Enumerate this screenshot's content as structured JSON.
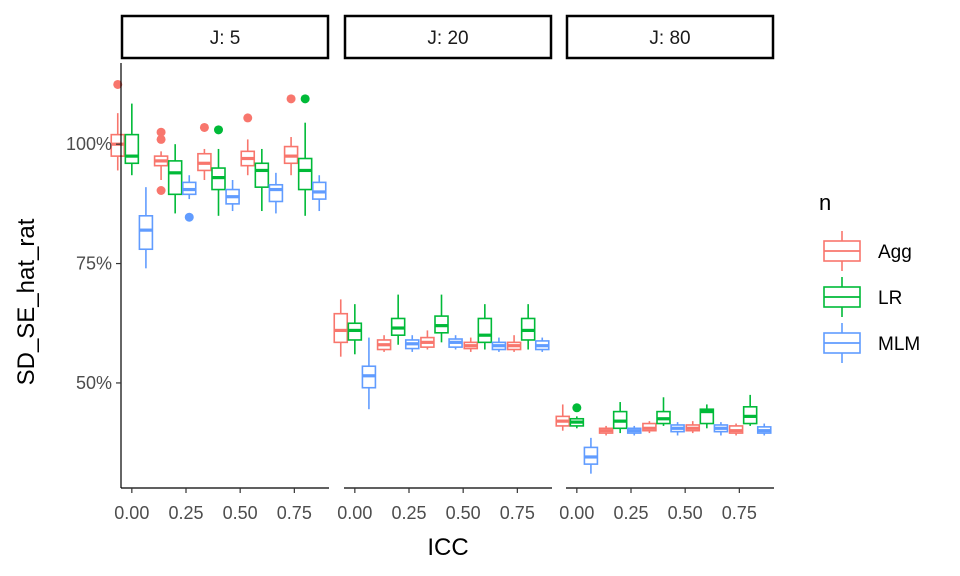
{
  "chart_data": {
    "type": "box",
    "facet_var": "J",
    "facets": [
      "J: 5",
      "J: 20",
      "J: 80"
    ],
    "xlabel": "ICC",
    "ylabel": "SD_SE_hat_rat",
    "x_ticks": [
      "0.00",
      "0.25",
      "0.50",
      "0.75"
    ],
    "x_groups": [
      0,
      0.2,
      0.4,
      0.6,
      0.8
    ],
    "y_ticks": [
      "50%",
      "75%",
      "100%"
    ],
    "y_tick_values": [
      0.5,
      0.75,
      1.0
    ],
    "ylim": [
      0.28,
      1.17
    ],
    "xlim": [
      -0.05,
      0.91
    ],
    "grid": false,
    "legend": {
      "title": "n",
      "position": "right",
      "entries": [
        {
          "name": "Agg",
          "color": "#F8766D"
        },
        {
          "name": "LR",
          "color": "#00BA38"
        },
        {
          "name": "MLM",
          "color": "#619CFF"
        }
      ]
    },
    "panels": [
      {
        "facet": "J: 5",
        "boxes": [
          {
            "x": 0.0,
            "series": "Agg",
            "lo": 0.945,
            "q1": 0.975,
            "med": 1.0,
            "q3": 1.02,
            "hi": 1.065,
            "outliers": [
              1.125
            ]
          },
          {
            "x": 0.0,
            "series": "LR",
            "lo": 0.935,
            "q1": 0.96,
            "med": 0.975,
            "q3": 1.02,
            "hi": 1.085,
            "outliers": []
          },
          {
            "x": 0.0,
            "series": "MLM",
            "lo": 0.74,
            "q1": 0.78,
            "med": 0.82,
            "q3": 0.85,
            "hi": 0.91,
            "outliers": []
          },
          {
            "x": 0.2,
            "series": "Agg",
            "lo": 0.925,
            "q1": 0.955,
            "med": 0.965,
            "q3": 0.975,
            "hi": 0.985,
            "outliers": [
              1.025,
              1.01,
              0.903
            ]
          },
          {
            "x": 0.2,
            "series": "LR",
            "lo": 0.855,
            "q1": 0.895,
            "med": 0.94,
            "q3": 0.965,
            "hi": 1.0,
            "outliers": []
          },
          {
            "x": 0.2,
            "series": "MLM",
            "lo": 0.885,
            "q1": 0.895,
            "med": 0.905,
            "q3": 0.92,
            "hi": 0.935,
            "outliers": [
              0.847
            ]
          },
          {
            "x": 0.4,
            "series": "Agg",
            "lo": 0.925,
            "q1": 0.945,
            "med": 0.96,
            "q3": 0.98,
            "hi": 0.99,
            "outliers": [
              1.035
            ]
          },
          {
            "x": 0.4,
            "series": "LR",
            "lo": 0.85,
            "q1": 0.905,
            "med": 0.93,
            "q3": 0.95,
            "hi": 0.99,
            "outliers": [
              1.03
            ]
          },
          {
            "x": 0.4,
            "series": "MLM",
            "lo": 0.86,
            "q1": 0.875,
            "med": 0.89,
            "q3": 0.905,
            "hi": 0.925,
            "outliers": []
          },
          {
            "x": 0.6,
            "series": "Agg",
            "lo": 0.935,
            "q1": 0.955,
            "med": 0.97,
            "q3": 0.985,
            "hi": 1.01,
            "outliers": [
              1.055
            ]
          },
          {
            "x": 0.6,
            "series": "LR",
            "lo": 0.86,
            "q1": 0.91,
            "med": 0.945,
            "q3": 0.96,
            "hi": 0.99,
            "outliers": []
          },
          {
            "x": 0.6,
            "series": "MLM",
            "lo": 0.855,
            "q1": 0.88,
            "med": 0.905,
            "q3": 0.915,
            "hi": 0.94,
            "outliers": []
          },
          {
            "x": 0.8,
            "series": "Agg",
            "lo": 0.935,
            "q1": 0.96,
            "med": 0.975,
            "q3": 0.995,
            "hi": 1.015,
            "outliers": [
              1.095
            ]
          },
          {
            "x": 0.8,
            "series": "LR",
            "lo": 0.85,
            "q1": 0.905,
            "med": 0.945,
            "q3": 0.97,
            "hi": 1.045,
            "outliers": [
              1.095
            ]
          },
          {
            "x": 0.8,
            "series": "MLM",
            "lo": 0.86,
            "q1": 0.885,
            "med": 0.9,
            "q3": 0.92,
            "hi": 0.935,
            "outliers": []
          }
        ]
      },
      {
        "facet": "J: 20",
        "boxes": [
          {
            "x": 0.0,
            "series": "Agg",
            "lo": 0.555,
            "q1": 0.585,
            "med": 0.61,
            "q3": 0.645,
            "hi": 0.675,
            "outliers": []
          },
          {
            "x": 0.0,
            "series": "LR",
            "lo": 0.56,
            "q1": 0.59,
            "med": 0.61,
            "q3": 0.625,
            "hi": 0.665,
            "outliers": []
          },
          {
            "x": 0.0,
            "series": "MLM",
            "lo": 0.445,
            "q1": 0.49,
            "med": 0.515,
            "q3": 0.535,
            "hi": 0.595,
            "outliers": []
          },
          {
            "x": 0.2,
            "series": "Agg",
            "lo": 0.565,
            "q1": 0.57,
            "med": 0.58,
            "q3": 0.59,
            "hi": 0.6,
            "outliers": []
          },
          {
            "x": 0.2,
            "series": "LR",
            "lo": 0.58,
            "q1": 0.6,
            "med": 0.615,
            "q3": 0.635,
            "hi": 0.685,
            "outliers": []
          },
          {
            "x": 0.2,
            "series": "MLM",
            "lo": 0.565,
            "q1": 0.572,
            "med": 0.582,
            "q3": 0.59,
            "hi": 0.6,
            "outliers": []
          },
          {
            "x": 0.4,
            "series": "Agg",
            "lo": 0.57,
            "q1": 0.575,
            "med": 0.585,
            "q3": 0.595,
            "hi": 0.61,
            "outliers": []
          },
          {
            "x": 0.4,
            "series": "LR",
            "lo": 0.585,
            "q1": 0.605,
            "med": 0.62,
            "q3": 0.64,
            "hi": 0.685,
            "outliers": []
          },
          {
            "x": 0.4,
            "series": "MLM",
            "lo": 0.57,
            "q1": 0.575,
            "med": 0.585,
            "q3": 0.592,
            "hi": 0.6,
            "outliers": []
          },
          {
            "x": 0.6,
            "series": "Agg",
            "lo": 0.565,
            "q1": 0.572,
            "med": 0.578,
            "q3": 0.585,
            "hi": 0.595,
            "outliers": []
          },
          {
            "x": 0.6,
            "series": "LR",
            "lo": 0.57,
            "q1": 0.585,
            "med": 0.6,
            "q3": 0.635,
            "hi": 0.665,
            "outliers": []
          },
          {
            "x": 0.6,
            "series": "MLM",
            "lo": 0.565,
            "q1": 0.57,
            "med": 0.578,
            "q3": 0.585,
            "hi": 0.595,
            "outliers": []
          },
          {
            "x": 0.8,
            "series": "Agg",
            "lo": 0.565,
            "q1": 0.57,
            "med": 0.578,
            "q3": 0.585,
            "hi": 0.6,
            "outliers": []
          },
          {
            "x": 0.8,
            "series": "LR",
            "lo": 0.57,
            "q1": 0.59,
            "med": 0.61,
            "q3": 0.635,
            "hi": 0.665,
            "outliers": []
          },
          {
            "x": 0.8,
            "series": "MLM",
            "lo": 0.565,
            "q1": 0.57,
            "med": 0.578,
            "q3": 0.588,
            "hi": 0.595,
            "outliers": []
          }
        ]
      },
      {
        "facet": "J: 80",
        "boxes": [
          {
            "x": 0.0,
            "series": "Agg",
            "lo": 0.4,
            "q1": 0.41,
            "med": 0.42,
            "q3": 0.43,
            "hi": 0.455,
            "outliers": []
          },
          {
            "x": 0.0,
            "series": "LR",
            "lo": 0.405,
            "q1": 0.41,
            "med": 0.418,
            "q3": 0.425,
            "hi": 0.43,
            "outliers": [
              0.448
            ]
          },
          {
            "x": 0.0,
            "series": "MLM",
            "lo": 0.31,
            "q1": 0.33,
            "med": 0.345,
            "q3": 0.365,
            "hi": 0.385,
            "outliers": []
          },
          {
            "x": 0.2,
            "series": "Agg",
            "lo": 0.39,
            "q1": 0.395,
            "med": 0.4,
            "q3": 0.405,
            "hi": 0.41,
            "outliers": []
          },
          {
            "x": 0.2,
            "series": "LR",
            "lo": 0.395,
            "q1": 0.405,
            "med": 0.42,
            "q3": 0.44,
            "hi": 0.46,
            "outliers": []
          },
          {
            "x": 0.2,
            "series": "MLM",
            "lo": 0.39,
            "q1": 0.395,
            "med": 0.4,
            "q3": 0.405,
            "hi": 0.41,
            "outliers": []
          },
          {
            "x": 0.4,
            "series": "Agg",
            "lo": 0.395,
            "q1": 0.4,
            "med": 0.405,
            "q3": 0.415,
            "hi": 0.42,
            "outliers": []
          },
          {
            "x": 0.4,
            "series": "LR",
            "lo": 0.41,
            "q1": 0.415,
            "med": 0.425,
            "q3": 0.44,
            "hi": 0.47,
            "outliers": []
          },
          {
            "x": 0.4,
            "series": "MLM",
            "lo": 0.39,
            "q1": 0.398,
            "med": 0.405,
            "q3": 0.412,
            "hi": 0.418,
            "outliers": []
          },
          {
            "x": 0.6,
            "series": "Agg",
            "lo": 0.395,
            "q1": 0.4,
            "med": 0.405,
            "q3": 0.412,
            "hi": 0.42,
            "outliers": []
          },
          {
            "x": 0.6,
            "series": "LR",
            "lo": 0.405,
            "q1": 0.415,
            "med": 0.44,
            "q3": 0.445,
            "hi": 0.455,
            "outliers": []
          },
          {
            "x": 0.6,
            "series": "MLM",
            "lo": 0.39,
            "q1": 0.398,
            "med": 0.405,
            "q3": 0.412,
            "hi": 0.418,
            "outliers": []
          },
          {
            "x": 0.8,
            "series": "Agg",
            "lo": 0.39,
            "q1": 0.395,
            "med": 0.4,
            "q3": 0.41,
            "hi": 0.415,
            "outliers": []
          },
          {
            "x": 0.8,
            "series": "LR",
            "lo": 0.41,
            "q1": 0.415,
            "med": 0.43,
            "q3": 0.45,
            "hi": 0.475,
            "outliers": []
          },
          {
            "x": 0.8,
            "series": "MLM",
            "lo": 0.39,
            "q1": 0.395,
            "med": 0.4,
            "q3": 0.408,
            "hi": 0.415,
            "outliers": []
          }
        ]
      }
    ]
  }
}
